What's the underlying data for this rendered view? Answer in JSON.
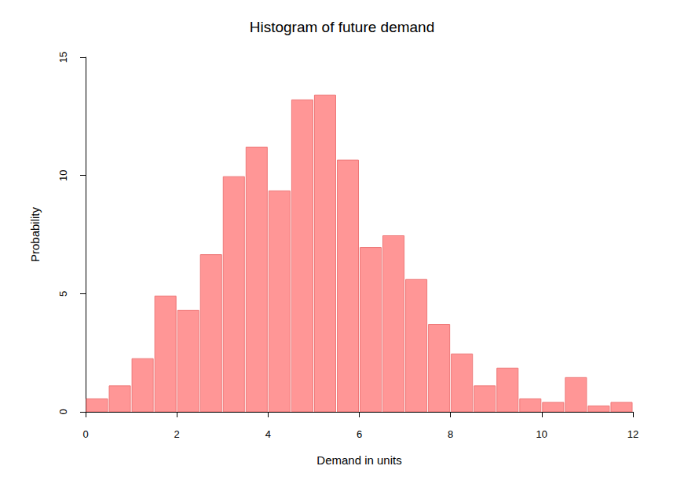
{
  "chart_data": {
    "type": "histogram",
    "title": "Histogram of future demand",
    "x_label": "Demand in units",
    "y_label": "Probability",
    "bins": [
      0,
      0.5,
      1,
      1.5,
      2,
      2.5,
      3,
      3.5,
      4,
      4.5,
      5,
      5.5,
      6,
      6.5,
      7,
      7.5,
      8,
      8.5,
      9,
      9.5,
      10,
      10.5,
      11,
      11.5,
      12
    ],
    "values": [
      0.55,
      1.1,
      2.25,
      4.9,
      4.3,
      6.65,
      9.95,
      11.2,
      9.35,
      13.2,
      13.4,
      10.65,
      6.95,
      7.45,
      5.6,
      3.7,
      2.45,
      1.1,
      1.85,
      0.55,
      0.4,
      1.45,
      0.25,
      0.4
    ],
    "color": "#ff9696",
    "xlim": [
      0,
      12
    ],
    "xticks": [
      0,
      2,
      4,
      6,
      8,
      10,
      12
    ],
    "ylim": [
      0,
      15
    ],
    "yticks": [
      0,
      5,
      10,
      15
    ],
    "grid": false
  }
}
